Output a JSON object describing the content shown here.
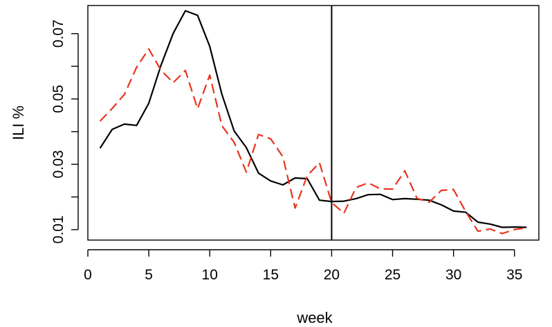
{
  "chart_data": {
    "type": "line",
    "title": "",
    "xlabel": "week",
    "ylabel": "ILI %",
    "xlim": [
      0,
      37
    ],
    "ylim": [
      0.0068,
      0.0786
    ],
    "xticks": [
      0,
      5,
      10,
      15,
      20,
      25,
      30,
      35
    ],
    "xtick_labels": [
      "0",
      "5",
      "10",
      "15",
      "20",
      "25",
      "30",
      "35"
    ],
    "yticks": [
      0.01,
      0.02,
      0.03,
      0.04,
      0.05,
      0.06,
      0.07
    ],
    "ytick_labels": [
      "0.01",
      "",
      "0.03",
      "",
      "0.05",
      "",
      "0.07"
    ],
    "grid": false,
    "vline": {
      "x": 20,
      "color": "#000000"
    },
    "series": [
      {
        "style": "solid",
        "color": "#000000",
        "x": [
          1,
          2,
          3,
          4,
          5,
          6,
          7,
          8,
          9,
          10,
          11,
          12,
          13,
          14,
          15,
          16,
          17,
          18,
          19,
          20,
          21,
          22,
          23,
          24,
          25,
          26,
          27,
          28,
          29,
          30,
          31,
          32,
          33,
          34,
          35,
          36
        ],
        "y": [
          0.0349,
          0.0407,
          0.0423,
          0.0419,
          0.0487,
          0.0603,
          0.0701,
          0.077,
          0.0756,
          0.0661,
          0.0514,
          0.0402,
          0.0351,
          0.0273,
          0.0249,
          0.0237,
          0.0258,
          0.0256,
          0.019,
          0.0186,
          0.0187,
          0.0195,
          0.0207,
          0.0208,
          0.0192,
          0.0195,
          0.0193,
          0.019,
          0.0176,
          0.0157,
          0.0153,
          0.0123,
          0.0117,
          0.0107,
          0.0108,
          0.0107
        ]
      },
      {
        "style": "dashed",
        "color": "#e8331c",
        "x": [
          1,
          2,
          3,
          4,
          5,
          6,
          7,
          8,
          9,
          10,
          11,
          12,
          13,
          14,
          15,
          16,
          17,
          18,
          19,
          20,
          21,
          22,
          23,
          24,
          25,
          26,
          27,
          28,
          29,
          30,
          31,
          32,
          33,
          34,
          35,
          36
        ],
        "y": [
          0.0432,
          0.0471,
          0.0514,
          0.0597,
          0.0653,
          0.0588,
          0.055,
          0.0587,
          0.047,
          0.0573,
          0.0418,
          0.0367,
          0.0276,
          0.0391,
          0.0378,
          0.0323,
          0.0166,
          0.0265,
          0.0305,
          0.0183,
          0.015,
          0.0229,
          0.0243,
          0.0225,
          0.0224,
          0.028,
          0.0196,
          0.0184,
          0.022,
          0.0223,
          0.0155,
          0.0095,
          0.0102,
          0.0088,
          0.01,
          0.0106
        ]
      }
    ]
  }
}
